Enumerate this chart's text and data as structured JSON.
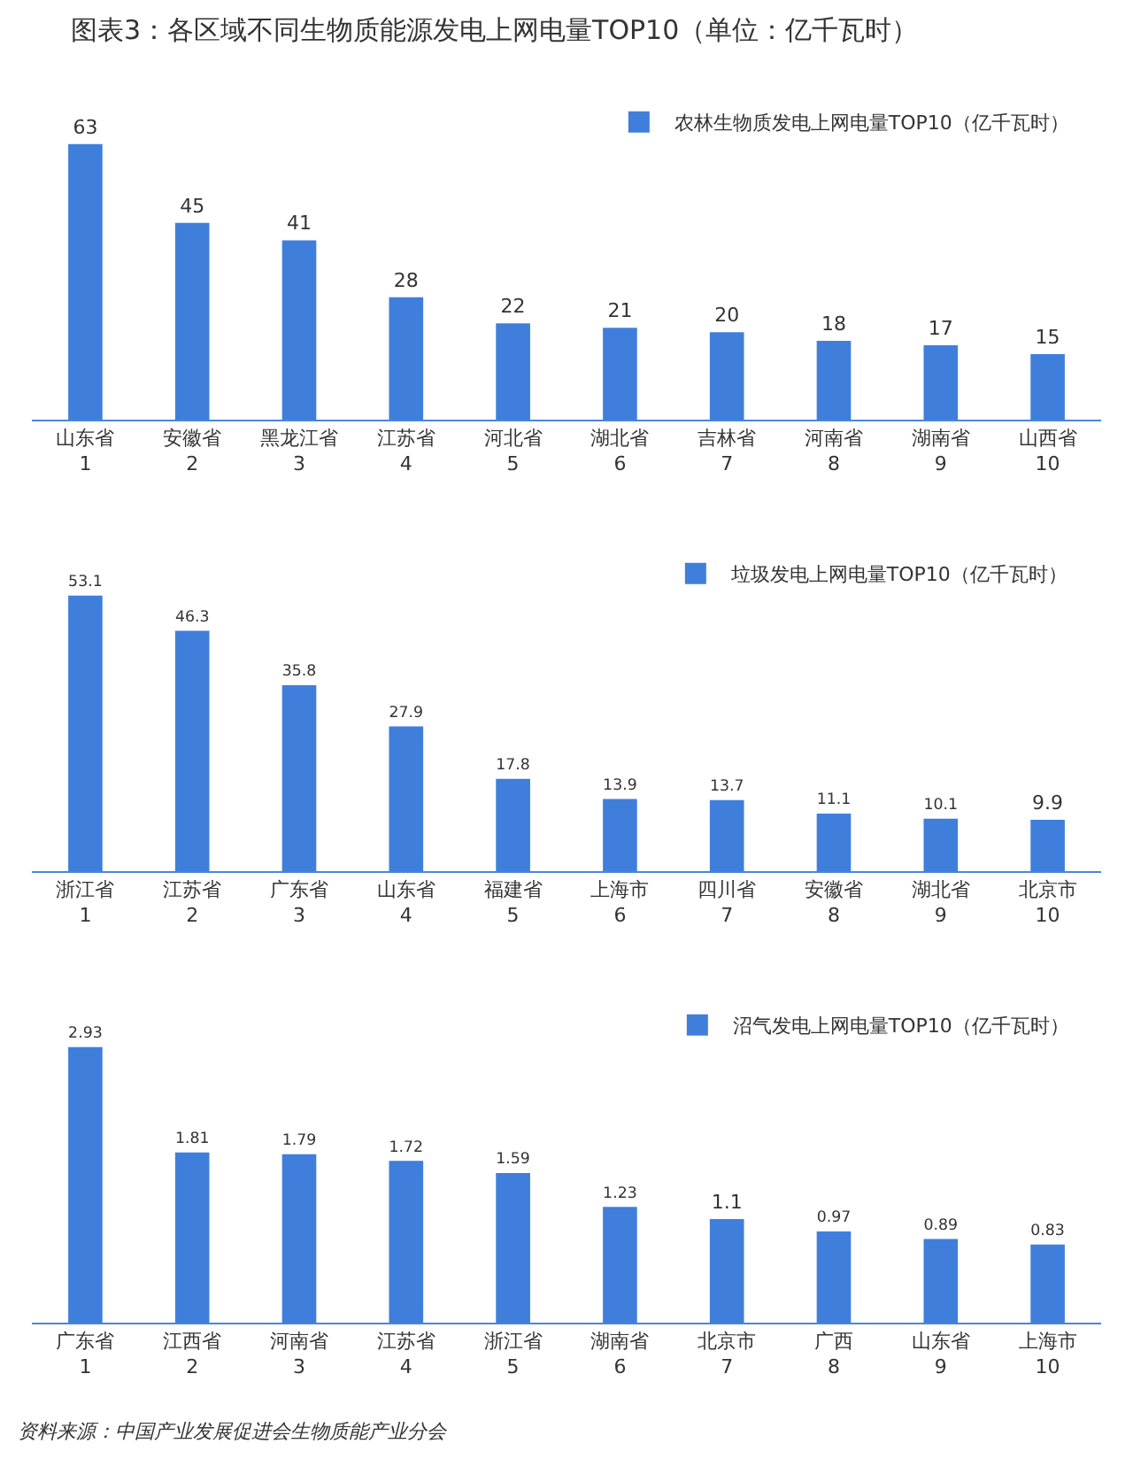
{
  "chart_data": [
    {
      "type": "bar",
      "title": "图表3：各区域不同生物质能源发电上网电量TOP10（单位：亿千瓦时）",
      "categories": [
        "山东省\n1",
        "安徽省\n2",
        "黑龙江省\n3",
        "江苏省\n4",
        "河北省\n5",
        "湖北省\n6",
        "吉林省\n7",
        "河南省\n8",
        "湖南省\n9",
        "山西省\n10"
      ],
      "series": [
        {
          "name": "农林生物质发电上网电量TOP10（亿千瓦时）",
          "color": "#3f7fdb",
          "values": [
            63,
            45,
            41,
            28,
            22,
            21,
            20,
            18,
            17,
            15
          ]
        }
      ],
      "data_labels": true,
      "legend": "top right",
      "grid": false
    },
    {
      "type": "bar",
      "categories": [
        "浙江省\n1",
        "江苏省\n2",
        "广东省\n3",
        "山东省\n4",
        "福建省\n5",
        "上海市\n6",
        "四川省\n7",
        "安徽省\n8",
        "湖北省\n9",
        "北京市\n10"
      ],
      "series": [
        {
          "name": "垃圾发电上网电量TOP10（亿千瓦时）",
          "color": "#3f7fdb",
          "values": [
            53.1,
            46.3,
            35.8,
            27.9,
            17.8,
            13.9,
            13.7,
            11.1,
            10.1,
            9.9
          ]
        }
      ],
      "data_labels": true,
      "legend": "top right",
      "grid": false
    },
    {
      "type": "bar",
      "categories": [
        "广东省\n1",
        "江西省\n2",
        "河南省\n3",
        "江苏省\n4",
        "浙江省\n5",
        "湖南省\n6",
        "北京市\n7",
        "广西\n8",
        "山东省\n9",
        "上海市\n10"
      ],
      "series": [
        {
          "name": "沼气发电上网电量TOP10（亿千瓦时）",
          "color": "#3f7fdb",
          "values": [
            2.93,
            1.81,
            1.79,
            1.72,
            1.59,
            1.23,
            1.1,
            0.97,
            0.89,
            0.83
          ]
        }
      ],
      "data_labels": true,
      "legend": "top right",
      "grid": false,
      "annotations": [
        "资料来源：中国产业发展促进会生物质能产业分会"
      ]
    }
  ]
}
